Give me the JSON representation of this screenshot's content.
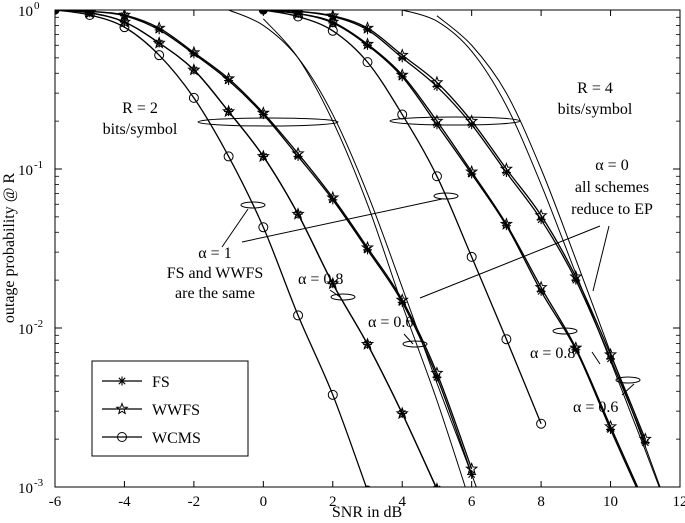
{
  "chart_data": {
    "type": "line",
    "xlabel": "SNR in dB",
    "ylabel": "outage probability @ R",
    "xlim": [
      -6,
      12
    ],
    "ylim": [
      0.001,
      1
    ],
    "yscale": "log",
    "grid": false,
    "legend_position": "bottom-left",
    "x_ticks": [
      "-6",
      "-4",
      "-2",
      "0",
      "2",
      "4",
      "6",
      "8",
      "10",
      "12"
    ],
    "y_ticks": [
      {
        "base": "10",
        "exp": "0"
      },
      {
        "base": "10",
        "exp": "-1"
      },
      {
        "base": "10",
        "exp": "-2"
      },
      {
        "base": "10",
        "exp": "-3"
      }
    ],
    "legend": [
      {
        "label": "FS",
        "marker": "star"
      },
      {
        "label": "WWFS",
        "marker": "pentagram"
      },
      {
        "label": "WCMS",
        "marker": "circle"
      }
    ],
    "annotations": {
      "r2": [
        "R = 2",
        "bits/symbol"
      ],
      "r4": [
        "R = 4",
        "bits/symbol"
      ],
      "alpha1": [
        "α = 1",
        "FS and WWFS",
        "are the same"
      ],
      "alpha0": [
        "α = 0",
        "all schemes",
        "reduce to EP"
      ],
      "alpha08_r2": "α = 0.8",
      "alpha06_r2": "α = 0.6",
      "alpha08_r4": "α = 0.8",
      "alpha06_r4": "α = 0.6"
    },
    "series": [
      {
        "group": "R=2",
        "alpha": "1",
        "scheme": "FS",
        "marker": "star",
        "x": [
          -6,
          -5,
          -4,
          -3,
          -2,
          -1,
          0,
          1,
          2,
          3,
          4,
          5
        ],
        "y": [
          1.0,
          0.96,
          0.84,
          0.62,
          0.42,
          0.23,
          0.12,
          0.052,
          0.019,
          0.0079,
          0.0029,
          0.00097
        ]
      },
      {
        "group": "R=2",
        "alpha": "1",
        "scheme": "WWFS",
        "marker": "pentagram",
        "x": [
          -6,
          -5,
          -4,
          -3,
          -2,
          -1,
          0,
          1,
          2,
          3,
          4,
          5
        ],
        "y": [
          1.0,
          0.96,
          0.84,
          0.62,
          0.42,
          0.23,
          0.12,
          0.052,
          0.019,
          0.0079,
          0.0029,
          0.00097
        ]
      },
      {
        "group": "R=2",
        "alpha": "1",
        "scheme": "WCMS",
        "marker": "circle",
        "x": [
          -6,
          -5,
          -4,
          -3,
          -2,
          -1,
          0,
          1,
          2,
          3
        ],
        "y": [
          1.0,
          0.93,
          0.78,
          0.52,
          0.28,
          0.12,
          0.043,
          0.012,
          0.0038,
          0.00095
        ]
      },
      {
        "group": "R=2",
        "alpha": "0.8",
        "scheme": "FS",
        "marker": "star",
        "x": [
          -6,
          -5,
          -4,
          -3,
          -2,
          -1,
          0,
          1,
          2,
          3,
          4,
          5,
          6
        ],
        "y": [
          1.0,
          0.98,
          0.92,
          0.75,
          0.53,
          0.36,
          0.22,
          0.12,
          0.064,
          0.031,
          0.0145,
          0.0049,
          0.0012
        ]
      },
      {
        "group": "R=2",
        "alpha": "0.8",
        "scheme": "WWFS",
        "marker": "pentagram",
        "x": [
          -6,
          -5,
          -4,
          -3,
          -2,
          -1,
          0,
          1,
          2,
          3,
          4,
          5,
          6
        ],
        "y": [
          1.0,
          0.98,
          0.93,
          0.77,
          0.54,
          0.37,
          0.225,
          0.125,
          0.066,
          0.032,
          0.015,
          0.0052,
          0.0013
        ]
      },
      {
        "group": "R=4",
        "alpha": "1",
        "scheme": "FS",
        "marker": "star",
        "x": [
          0,
          1,
          2,
          3,
          4,
          5,
          6,
          7,
          8,
          9,
          10,
          11
        ],
        "y": [
          1.0,
          0.95,
          0.83,
          0.6,
          0.38,
          0.19,
          0.093,
          0.044,
          0.017,
          0.0073,
          0.0023,
          0.00075
        ]
      },
      {
        "group": "R=4",
        "alpha": "1",
        "scheme": "WWFS",
        "marker": "pentagram",
        "x": [
          0,
          1,
          2,
          3,
          4,
          5,
          6,
          7,
          8,
          9,
          10,
          11
        ],
        "y": [
          1.0,
          0.95,
          0.84,
          0.61,
          0.39,
          0.2,
          0.096,
          0.045,
          0.018,
          0.0075,
          0.0024,
          0.00078
        ]
      },
      {
        "group": "R=4",
        "alpha": "1",
        "scheme": "WCMS",
        "marker": "circle",
        "x": [
          0,
          1,
          2,
          3,
          4,
          5,
          6,
          7,
          8
        ],
        "y": [
          1.0,
          0.91,
          0.74,
          0.47,
          0.22,
          0.09,
          0.028,
          0.0085,
          0.0025
        ]
      },
      {
        "group": "R=4",
        "alpha": "0.8",
        "scheme": "FS",
        "marker": "star",
        "x": [
          0,
          1,
          2,
          3,
          4,
          5,
          6,
          7,
          8,
          9,
          10,
          11
        ],
        "y": [
          1.0,
          0.98,
          0.91,
          0.75,
          0.5,
          0.33,
          0.19,
          0.095,
          0.048,
          0.02,
          0.0064,
          0.0019
        ]
      },
      {
        "group": "R=4",
        "alpha": "0.8",
        "scheme": "WWFS",
        "marker": "pentagram",
        "x": [
          0,
          1,
          2,
          3,
          4,
          5,
          6,
          7,
          8,
          9,
          10,
          11
        ],
        "y": [
          1.0,
          0.98,
          0.92,
          0.77,
          0.52,
          0.35,
          0.2,
          0.1,
          0.051,
          0.021,
          0.0068,
          0.002
        ]
      }
    ],
    "reference_curves": [
      {
        "group": "R=2",
        "alpha": "0.6",
        "x": [
          0,
          1,
          2,
          3,
          4,
          5,
          6
        ],
        "y": [
          0.88,
          0.5,
          0.2,
          0.06,
          0.014,
          0.0035,
          0.00075
        ]
      },
      {
        "group": "R=2",
        "alpha": "0",
        "x": [
          -1,
          0,
          1,
          2,
          3,
          4,
          5,
          6,
          6.5
        ],
        "y": [
          1.0,
          0.8,
          0.5,
          0.22,
          0.07,
          0.018,
          0.0045,
          0.0012,
          0.0006
        ]
      },
      {
        "group": "R=4",
        "alpha": "0.6",
        "x": [
          5,
          6,
          7,
          8,
          9,
          10,
          11,
          12
        ],
        "y": [
          0.92,
          0.6,
          0.3,
          0.1,
          0.027,
          0.007,
          0.0018,
          0.00045
        ]
      },
      {
        "group": "R=4",
        "alpha": "0",
        "x": [
          4,
          5,
          6,
          7,
          8,
          9,
          10,
          11,
          12
        ],
        "y": [
          1.0,
          0.85,
          0.55,
          0.25,
          0.08,
          0.022,
          0.0062,
          0.0017,
          0.00045
        ]
      }
    ]
  }
}
